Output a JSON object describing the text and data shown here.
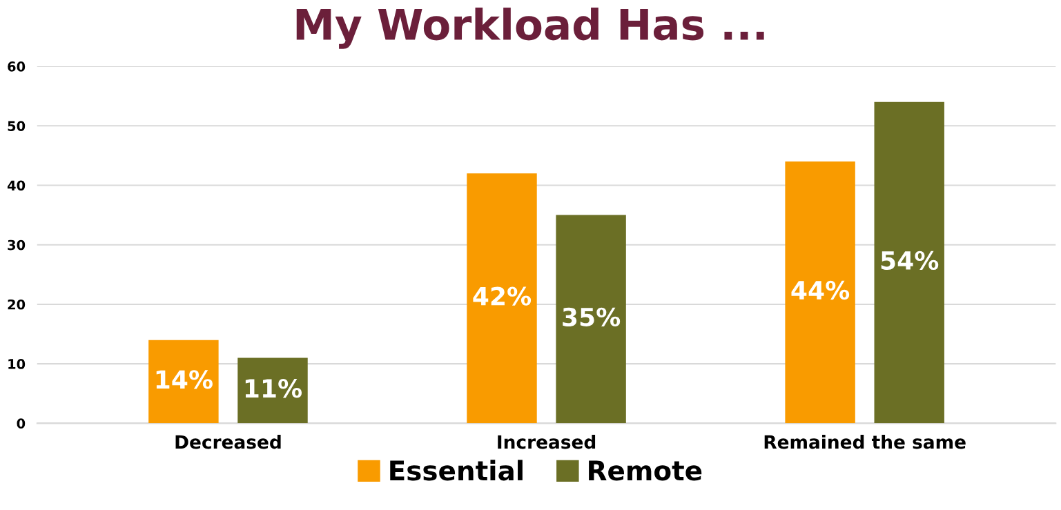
{
  "chart_data": {
    "type": "bar",
    "title": "My Workload Has ...",
    "categories": [
      "Decreased",
      "Increased",
      "Remained the same"
    ],
    "series": [
      {
        "name": "Essential",
        "color": "#f99b00",
        "values": [
          14,
          42,
          44
        ],
        "value_labels": [
          "14%",
          "42%",
          "44%"
        ]
      },
      {
        "name": "Remote",
        "color": "#6b6f25",
        "values": [
          11,
          35,
          54
        ],
        "value_labels": [
          "11%",
          "35%",
          "54%"
        ]
      }
    ],
    "ylim": [
      0,
      60
    ],
    "yticks": [
      0,
      10,
      20,
      30,
      40,
      50,
      60
    ],
    "grid": "y",
    "legend": "bottom"
  }
}
